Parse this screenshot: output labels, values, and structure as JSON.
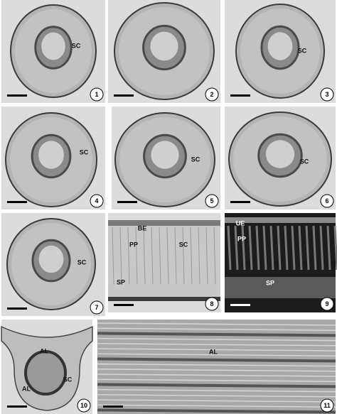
{
  "panels": [
    {
      "number": 1,
      "labels": [
        "SC"
      ]
    },
    {
      "number": 2,
      "labels": []
    },
    {
      "number": 3,
      "labels": [
        "SC"
      ]
    },
    {
      "number": 4,
      "labels": [
        "SC"
      ]
    },
    {
      "number": 5,
      "labels": [
        "SC"
      ]
    },
    {
      "number": 6,
      "labels": [
        "SC"
      ]
    },
    {
      "number": 7,
      "labels": [
        "SC"
      ]
    },
    {
      "number": 8,
      "labels": [
        "BE",
        "PP",
        "SC",
        "SP"
      ]
    },
    {
      "number": 9,
      "labels": [
        "UE",
        "PP",
        "SP"
      ]
    },
    {
      "number": 10,
      "labels": [
        "AL",
        "SC",
        "AL"
      ]
    },
    {
      "number": 11,
      "labels": [
        "AL"
      ]
    }
  ]
}
